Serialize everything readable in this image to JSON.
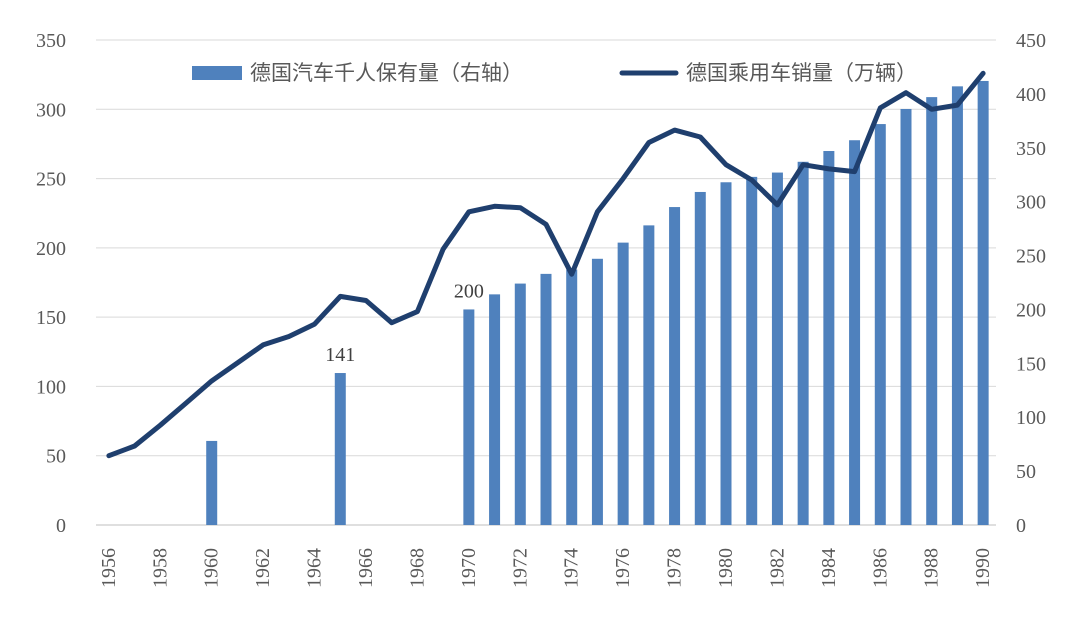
{
  "chart_data": {
    "type": "bar",
    "title": "",
    "grid": true,
    "legend_position": "top",
    "x": [
      1956,
      1957,
      1958,
      1959,
      1960,
      1961,
      1962,
      1963,
      1964,
      1965,
      1966,
      1967,
      1968,
      1969,
      1970,
      1971,
      1972,
      1973,
      1974,
      1975,
      1976,
      1977,
      1978,
      1979,
      1980,
      1981,
      1982,
      1983,
      1984,
      1985,
      1986,
      1987,
      1988,
      1989,
      1990
    ],
    "x_tick_labels": [
      "1956",
      "1958",
      "1960",
      "1962",
      "1964",
      "1966",
      "1968",
      "1970",
      "1972",
      "1974",
      "1976",
      "1978",
      "1980",
      "1982",
      "1984",
      "1986",
      "1988",
      "1990"
    ],
    "y_left_ticks": [
      "0",
      "50",
      "100",
      "150",
      "200",
      "250",
      "300",
      "350"
    ],
    "y_right_ticks": [
      "0",
      "50",
      "100",
      "150",
      "200",
      "250",
      "300",
      "350",
      "400",
      "450"
    ],
    "ylim_left": [
      0,
      350
    ],
    "ylim_right": [
      0,
      450
    ],
    "series": [
      {
        "name": "德国汽车千人保有量（右轴）",
        "type": "bar",
        "axis": "right",
        "color": "#4f81bd",
        "values": [
          null,
          null,
          null,
          null,
          78,
          null,
          null,
          null,
          null,
          141,
          null,
          null,
          null,
          null,
          200,
          214,
          224,
          233,
          237,
          247,
          262,
          278,
          295,
          309,
          318,
          323,
          327,
          337,
          347,
          357,
          372,
          386,
          397,
          407,
          412
        ]
      },
      {
        "name": "德国乘用车销量（万辆）",
        "type": "line",
        "axis": "left",
        "color": "#1f3f6e",
        "values": [
          50,
          57,
          72,
          88,
          104,
          117,
          130,
          136,
          145,
          165,
          162,
          146,
          154,
          199,
          226,
          230,
          229,
          217,
          181,
          226,
          250,
          276,
          285,
          280,
          260,
          249,
          231,
          260,
          257,
          255,
          301,
          312,
          300,
          303,
          326
        ]
      }
    ],
    "annotations": [
      {
        "x": 1965,
        "text": "141"
      },
      {
        "x": 1970,
        "text": "200"
      }
    ]
  }
}
